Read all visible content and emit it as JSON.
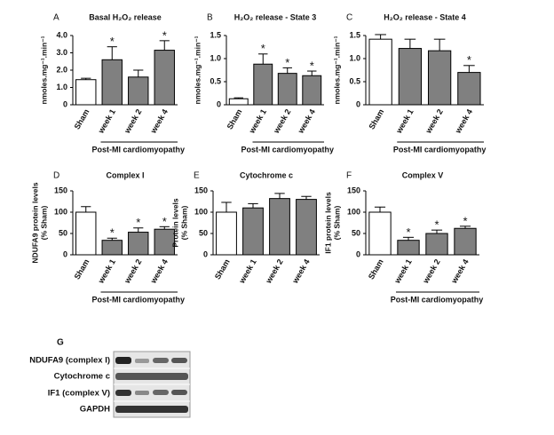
{
  "chart_data": [
    {
      "type": "bar",
      "panel": "A",
      "title": "Basal H₂O₂ release",
      "ylabel": [
        "nmoles.mg⁻¹.min⁻¹"
      ],
      "categories": [
        "Sham",
        "week 1",
        "week 2",
        "week 4"
      ],
      "values": [
        1.45,
        2.6,
        1.6,
        3.15
      ],
      "errors": [
        0.08,
        0.75,
        0.4,
        0.55
      ],
      "colors": [
        "#ffffff",
        "#808080",
        "#808080",
        "#808080"
      ],
      "markers": [
        null,
        "*",
        null,
        "*"
      ],
      "group_label": "Post-MI cardiomyopathy",
      "ylim": [
        0,
        4
      ],
      "yticks": [
        0,
        {
          "value": 1,
          "label": "1.0"
        },
        {
          "value": 2,
          "label": "2.0"
        },
        {
          "value": 3,
          "label": "3.0"
        },
        {
          "value": 4,
          "label": "4.0"
        }
      ]
    },
    {
      "type": "bar",
      "panel": "B",
      "title": "H₂O₂ release - State 3",
      "ylabel": [
        "nmoles.mg⁻¹.min⁻¹"
      ],
      "categories": [
        "Sham",
        "week 1",
        "week 2",
        "week 4"
      ],
      "values": [
        0.13,
        0.88,
        0.68,
        0.63
      ],
      "errors": [
        0.02,
        0.22,
        0.12,
        0.1
      ],
      "colors": [
        "#ffffff",
        "#808080",
        "#808080",
        "#808080"
      ],
      "markers": [
        null,
        "*",
        "*",
        "*"
      ],
      "group_label": "Post-MI cardiomyopathy",
      "ylim": [
        0,
        1.5
      ],
      "yticks": [
        0,
        0.5,
        {
          "value": 1,
          "label": "1.0"
        },
        1.5
      ]
    },
    {
      "type": "bar",
      "panel": "C",
      "title": "H₂O₂ release - State 4",
      "ylabel": [
        "nmoles.mg⁻¹.min⁻¹"
      ],
      "categories": [
        "Sham",
        "week 1",
        "week 2",
        "week 4"
      ],
      "values": [
        1.42,
        1.22,
        1.17,
        0.7
      ],
      "errors": [
        0.1,
        0.2,
        0.25,
        0.15
      ],
      "colors": [
        "#ffffff",
        "#808080",
        "#808080",
        "#808080"
      ],
      "markers": [
        null,
        null,
        null,
        "*"
      ],
      "group_label": "Post-MI cardiomyopathy",
      "ylim": [
        0,
        1.5
      ],
      "yticks": [
        0,
        0.5,
        {
          "value": 1,
          "label": "1.0"
        },
        1.5
      ]
    },
    {
      "type": "bar",
      "panel": "D",
      "title": "Complex I",
      "ylabel": [
        "NDUFA9 protein levels",
        "(% Sham)"
      ],
      "categories": [
        "Sham",
        "week 1",
        "week 2",
        "week 4"
      ],
      "values": [
        100,
        34,
        53,
        60
      ],
      "errors": [
        13,
        5,
        10,
        6
      ],
      "colors": [
        "#ffffff",
        "#808080",
        "#808080",
        "#808080"
      ],
      "markers": [
        null,
        "*",
        "*",
        "*"
      ],
      "group_label": "Post-MI cardiomyopathy",
      "ylim": [
        0,
        150
      ],
      "yticks": [
        0,
        50,
        100,
        150
      ]
    },
    {
      "type": "bar",
      "panel": "E",
      "title": "Cytochrome c",
      "ylabel": [
        "Protein levels",
        "(% Sham)"
      ],
      "categories": [
        "Sham",
        "week 1",
        "week 2",
        "week 4"
      ],
      "values": [
        100,
        110,
        132,
        130
      ],
      "errors": [
        23,
        10,
        12,
        7
      ],
      "colors": [
        "#ffffff",
        "#808080",
        "#808080",
        "#808080"
      ],
      "markers": [
        null,
        null,
        null,
        null
      ],
      "ylim": [
        0,
        150
      ],
      "yticks": [
        0,
        50,
        100,
        150
      ]
    },
    {
      "type": "bar",
      "panel": "F",
      "title": "Complex V",
      "ylabel": [
        "IF1 protein levels",
        "(% Sham)"
      ],
      "categories": [
        "Sham",
        "week 1",
        "week 2",
        "week 4"
      ],
      "values": [
        100,
        34,
        50,
        62
      ],
      "errors": [
        12,
        7,
        8,
        5
      ],
      "colors": [
        "#ffffff",
        "#808080",
        "#808080",
        "#808080"
      ],
      "markers": [
        null,
        "*",
        "*",
        "*"
      ],
      "group_label": "Post-MI cardiomyopathy",
      "ylim": [
        0,
        150
      ],
      "yticks": [
        0,
        50,
        100,
        150
      ]
    }
  ],
  "blot": {
    "panel": "G",
    "rows": [
      "NDUFA9 (complex I)",
      "Cytochrome c",
      "IF1 (complex V)",
      "GAPDH"
    ]
  }
}
